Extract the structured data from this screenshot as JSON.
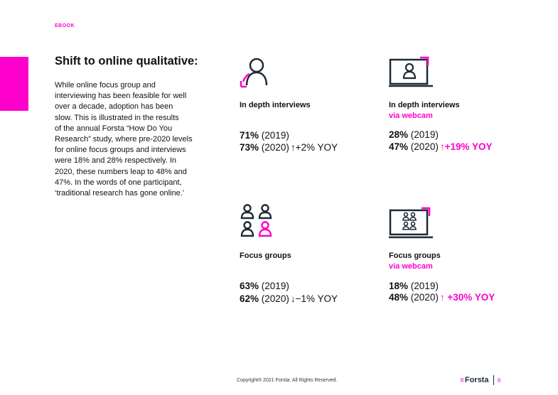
{
  "header": {
    "label": "EBOOK"
  },
  "intro": {
    "heading": "Shift to online qualitative:",
    "lines": [
      "While online focus group and",
      "interviewing has been feasible for well",
      "over a decade, adoption has been",
      "slow. This is illustrated in the results",
      "of the annual Forsta “How Do You",
      "Research” study, where pre-2020 levels",
      "for online focus groups and interviews",
      "were 18% and 28% respectively. In",
      "2020, these numbers leap to 48% and",
      "47%. In the words of one participant,",
      "‘traditional research has gone online.’"
    ]
  },
  "cards": [
    {
      "icon": "person-icon",
      "title": "In depth interviews",
      "subtitle": "",
      "stat1_value": "71%",
      "stat1_year": "(2019)",
      "stat2_value": "73%",
      "stat2_year": "(2020)",
      "arrow": "↑",
      "yoy": "+2% YOY",
      "yoy_highlight": false
    },
    {
      "icon": "webcam-person-icon",
      "title": "In depth interviews",
      "subtitle": "via webcam",
      "stat1_value": "28%",
      "stat1_year": "(2019)",
      "stat2_value": "47%",
      "stat2_year": "(2020)",
      "arrow": "↑",
      "yoy": "+19% YOY",
      "yoy_highlight": true
    },
    {
      "icon": "group-icon",
      "title": "Focus groups",
      "subtitle": "",
      "stat1_value": "63%",
      "stat1_year": "(2019)",
      "stat2_value": "62%",
      "stat2_year": "(2020)",
      "arrow": "↓",
      "yoy": "−1% YOY",
      "yoy_highlight": false
    },
    {
      "icon": "webcam-group-icon",
      "title": "Focus groups",
      "subtitle": "via webcam",
      "stat1_value": "18%",
      "stat1_year": "(2019)",
      "stat2_value": "48%",
      "stat2_year": "(2020)",
      "arrow": "↑",
      "yoy": "+30% YOY",
      "yoy_highlight": true
    }
  ],
  "footer": {
    "copyright": "Copyright® 2021 Forsta. All Rights Reserved.",
    "logo_text": "Forsta",
    "page_number": "6"
  },
  "colors": {
    "accent": "#ff00cc",
    "navy": "#1c2b36"
  }
}
